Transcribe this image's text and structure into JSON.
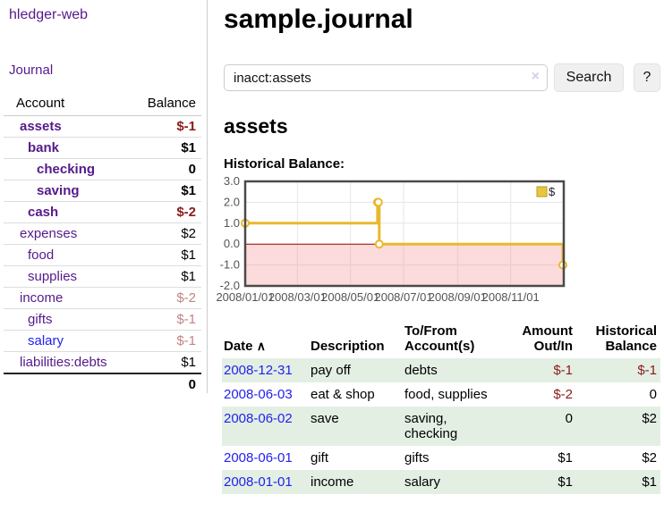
{
  "app": {
    "title": "hledger-web"
  },
  "sidebar": {
    "journal_label": "Journal",
    "table": {
      "account_header": "Account",
      "balance_header": "Balance",
      "rows": [
        {
          "name": "assets",
          "balance": "$-1"
        },
        {
          "name": "bank",
          "balance": "$1"
        },
        {
          "name": "checking",
          "balance": "0"
        },
        {
          "name": "saving",
          "balance": "$1"
        },
        {
          "name": "cash",
          "balance": "$-2"
        },
        {
          "name": "expenses",
          "balance": "$2"
        },
        {
          "name": "food",
          "balance": "$1"
        },
        {
          "name": "supplies",
          "balance": "$1"
        },
        {
          "name": "income",
          "balance": "$-2"
        },
        {
          "name": "gifts",
          "balance": "$-1"
        },
        {
          "name": "salary",
          "balance": "$-1"
        },
        {
          "name": "liabilities:debts",
          "balance": "$1"
        }
      ],
      "total": "0"
    }
  },
  "main": {
    "title": "sample.journal",
    "search": {
      "value": "inacct:assets",
      "clear_icon": "×",
      "search_label": "Search",
      "help_label": "?"
    },
    "section_heading": "assets",
    "chart_heading": "Historical Balance:"
  },
  "chart_data": {
    "type": "line",
    "step": true,
    "title": "Historical Balance",
    "series": [
      {
        "name": "$",
        "color": "#e9b92c",
        "points": [
          [
            "2008/01/01",
            1
          ],
          [
            "2008/06/01",
            2
          ],
          [
            "2008/06/02",
            2
          ],
          [
            "2008/06/03",
            0
          ],
          [
            "2008/12/31",
            -1
          ]
        ]
      }
    ],
    "x_range": [
      "2008/01/01",
      "2009/01/01"
    ],
    "x_ticks": [
      "2008/01/01",
      "2008/03/01",
      "2008/05/01",
      "2008/07/01",
      "2008/09/01",
      "2008/11/01"
    ],
    "y_ticks": [
      3.0,
      2.0,
      1.0,
      0.0,
      -1.0,
      -2.0
    ],
    "ylim": [
      -2,
      3
    ],
    "grid": true,
    "legend_position": "top-right",
    "legend": [
      {
        "label": "$",
        "color": "#e9c63e"
      }
    ],
    "negative_region_color": "#fbdbdb",
    "zero_line_color": "#990000"
  },
  "register": {
    "headers": {
      "date": "Date",
      "sort_icon": "∧",
      "description": "Description",
      "accounts": "To/From Account(s)",
      "amount": "Amount Out/In",
      "balance": "Historical Balance"
    },
    "rows": [
      {
        "date": "2008-12-31",
        "description": "pay off",
        "accounts": "debts",
        "amount": "$-1",
        "balance": "$-1"
      },
      {
        "date": "2008-06-03",
        "description": "eat & shop",
        "accounts": "food, supplies",
        "amount": "$-2",
        "balance": "0"
      },
      {
        "date": "2008-06-02",
        "description": "save",
        "accounts": "saving, checking",
        "amount": "0",
        "balance": "$2"
      },
      {
        "date": "2008-06-01",
        "description": "gift",
        "accounts": "gifts",
        "amount": "$1",
        "balance": "$2"
      },
      {
        "date": "2008-01-01",
        "description": "income",
        "accounts": "salary",
        "amount": "$1",
        "balance": "$1"
      }
    ]
  }
}
